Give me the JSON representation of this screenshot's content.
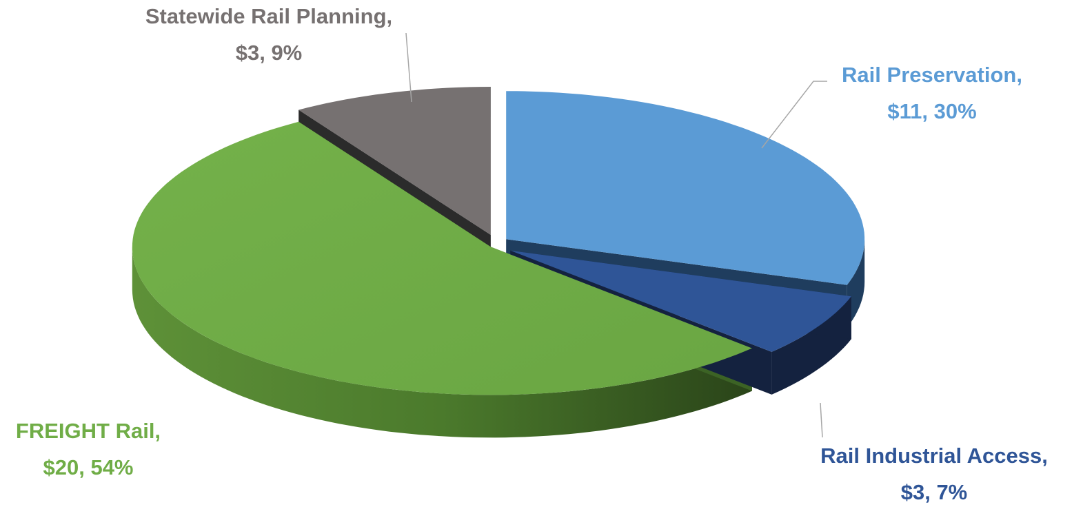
{
  "chart_data": {
    "type": "pie",
    "title": "",
    "slices": [
      {
        "name": "Rail Preservation",
        "value": 11,
        "percent": 30,
        "color": "#5B9BD5",
        "label_line1": "Rail Preservation,",
        "label_line2": "$11, 30%"
      },
      {
        "name": "Rail Industrial Access",
        "value": 3,
        "percent": 7,
        "color": "#2F5597",
        "label_line1": "Rail Industrial Access,",
        "label_line2": "$3, 7%"
      },
      {
        "name": "FREIGHT Rail",
        "value": 20,
        "percent": 54,
        "color": "#70AD47",
        "label_line1": "FREIGHT Rail,",
        "label_line2": "$20, 54%"
      },
      {
        "name": "Statewide Rail Planning",
        "value": 3,
        "percent": 9,
        "color": "#767171",
        "label_line1": "Statewide Rail Planning,",
        "label_line2": "$3, 9%"
      }
    ],
    "legend": "none",
    "three_d": true,
    "exploded": true
  }
}
